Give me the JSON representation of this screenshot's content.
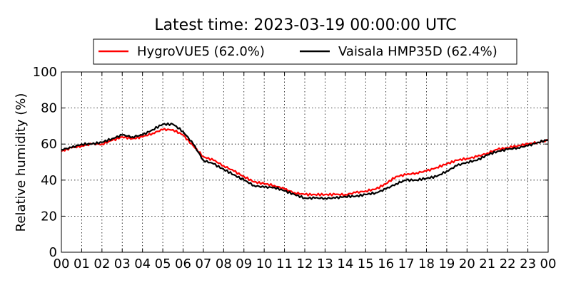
{
  "chart_data": {
    "type": "line",
    "title": "Latest time: 2023-03-19 00:00:00 UTC",
    "xlabel": "",
    "ylabel": "Relative humidity (%)",
    "xlim": [
      0,
      24
    ],
    "ylim": [
      0,
      100
    ],
    "grid": true,
    "legend_placement": "top",
    "x_ticks": [
      "00",
      "01",
      "02",
      "03",
      "04",
      "05",
      "06",
      "07",
      "08",
      "09",
      "10",
      "11",
      "12",
      "13",
      "14",
      "15",
      "16",
      "17",
      "18",
      "19",
      "20",
      "21",
      "22",
      "23",
      "00"
    ],
    "y_ticks": [
      0,
      20,
      40,
      60,
      80,
      100
    ],
    "series": [
      {
        "name": "HygroVUE5 (62.0%)",
        "color": "#ff0000",
        "x": [
          0,
          0.5,
          1,
          1.5,
          2,
          2.5,
          3,
          3.5,
          4,
          4.5,
          5,
          5.5,
          6,
          6.5,
          7,
          7.5,
          8,
          8.5,
          9,
          9.5,
          10,
          10.5,
          11,
          11.5,
          12,
          12.5,
          13,
          13.5,
          14,
          14.5,
          15,
          15.5,
          16,
          16.5,
          17,
          17.5,
          18,
          18.5,
          19,
          19.5,
          20,
          20.5,
          21,
          21.5,
          22,
          22.5,
          23,
          23.5,
          24
        ],
        "values": [
          56,
          58,
          59,
          60,
          60,
          62,
          64,
          63,
          64,
          66,
          68,
          68,
          65,
          59,
          53,
          51,
          48,
          45,
          42,
          39,
          38,
          37,
          35,
          33,
          32,
          32,
          32,
          32,
          32,
          33,
          34,
          35,
          38,
          42,
          43,
          44,
          45,
          47,
          49,
          51,
          52,
          53,
          55,
          57,
          58,
          59,
          60,
          61,
          62
        ]
      },
      {
        "name": "Vaisala HMP35D (62.4%)",
        "color": "#000000",
        "x": [
          0,
          0.5,
          1,
          1.5,
          2,
          2.5,
          3,
          3.5,
          4,
          4.5,
          5,
          5.5,
          6,
          6.5,
          7,
          7.5,
          8,
          8.5,
          9,
          9.5,
          10,
          10.5,
          11,
          11.5,
          12,
          12.5,
          13,
          13.5,
          14,
          14.5,
          15,
          15.5,
          16,
          16.5,
          17,
          17.5,
          18,
          18.5,
          19,
          19.5,
          20,
          20.5,
          21,
          21.5,
          22,
          22.5,
          23,
          23.5,
          24
        ],
        "values": [
          57,
          58,
          60,
          60,
          61,
          63,
          65,
          64,
          65,
          68,
          71,
          71,
          67,
          60,
          51,
          49,
          46,
          43,
          40,
          37,
          36,
          36,
          34,
          32,
          30,
          30,
          30,
          30,
          31,
          31,
          32,
          33,
          35,
          38,
          40,
          40,
          41,
          42,
          45,
          48,
          50,
          51,
          54,
          56,
          57,
          58,
          59,
          61,
          62.4
        ]
      }
    ]
  }
}
